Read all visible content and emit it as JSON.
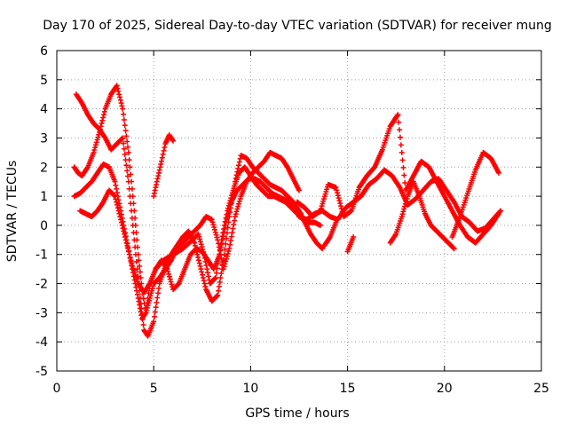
{
  "chart_data": {
    "type": "scatter",
    "title": "Day 170 of 2025, Sidereal Day-to-day VTEC variation (SDTVAR) for receiver mung",
    "xlabel": "GPS time / hours",
    "ylabel": "SDTVAR / TECUs",
    "xlim": [
      0,
      25
    ],
    "ylim": [
      -5,
      6
    ],
    "xticks": [
      "0",
      "5",
      "10",
      "15",
      "20",
      "25"
    ],
    "yticks": [
      "-5",
      "-4",
      "-3",
      "-2",
      "-1",
      "0",
      "1",
      "2",
      "3",
      "4",
      "5",
      "6"
    ],
    "grid": true,
    "marker": "plus",
    "color": "#ff0000",
    "series": [
      {
        "name": "s1",
        "x": [
          0.9,
          1.2,
          1.5,
          1.8,
          2.1,
          2.4,
          2.7,
          3.0,
          3.3,
          3.6,
          3.9,
          4.2,
          4.4,
          4.6,
          4.8,
          5.1,
          5.5,
          6.0,
          6.5,
          7.0,
          7.3,
          7.6,
          7.9,
          8.2,
          8.5,
          8.8,
          9.1,
          9.4,
          9.7,
          10.0,
          10.3,
          10.6,
          10.9,
          11.2,
          11.5,
          11.8,
          12.1,
          12.4,
          12.7,
          13.0,
          13.3,
          13.6
        ],
        "y": [
          1.0,
          1.1,
          1.3,
          1.5,
          1.8,
          2.1,
          2.0,
          1.5,
          0.5,
          -0.5,
          -1.5,
          -2.5,
          -3.2,
          -3.0,
          -2.0,
          -1.5,
          -1.2,
          -1.0,
          -0.8,
          -0.5,
          -0.3,
          -1.0,
          -2.0,
          -1.8,
          -0.5,
          0.5,
          1.2,
          1.8,
          2.0,
          1.7,
          1.4,
          1.2,
          1.0,
          1.0,
          0.9,
          0.8,
          0.6,
          0.4,
          0.2,
          0.1,
          0.1,
          0.0
        ]
      },
      {
        "name": "s2",
        "x": [
          0.9,
          1.1,
          1.3,
          1.6,
          1.9,
          2.2,
          2.5,
          2.8,
          3.1,
          3.4,
          3.7,
          4.0,
          4.2,
          4.4,
          4.6,
          4.8,
          5.0,
          5.3,
          5.6,
          5.9,
          6.2,
          6.5,
          6.8,
          7.1,
          7.4,
          7.7,
          8.0,
          8.3,
          8.6,
          8.9,
          9.2,
          9.5,
          9.8,
          10.1,
          10.4,
          10.7,
          11.0,
          11.3,
          11.6,
          11.9,
          12.2,
          12.5
        ],
        "y": [
          2.0,
          1.8,
          1.7,
          2.0,
          2.5,
          3.2,
          4.0,
          4.5,
          4.8,
          4.0,
          2.5,
          0.5,
          -1.0,
          -2.2,
          -3.0,
          -2.5,
          -2.0,
          -1.8,
          -1.5,
          -1.2,
          -0.8,
          -0.6,
          -0.4,
          -0.2,
          0.0,
          0.3,
          0.2,
          -0.5,
          -1.5,
          -0.8,
          0.3,
          1.0,
          1.5,
          1.8,
          2.0,
          2.2,
          2.5,
          2.4,
          2.3,
          2.0,
          1.6,
          1.2
        ]
      },
      {
        "name": "s3",
        "x": [
          1.0,
          1.3,
          1.6,
          1.9,
          2.2,
          2.5,
          2.8,
          3.1,
          3.4,
          3.7,
          4.0,
          4.3,
          4.5,
          4.7,
          5.0,
          5.3,
          5.6,
          5.9,
          6.2,
          6.5,
          6.8,
          7.1,
          7.4,
          7.7,
          8.0,
          8.3,
          8.6,
          8.9,
          9.2,
          9.5,
          9.8,
          10.1,
          10.4,
          10.7,
          11.0,
          11.3,
          11.6,
          11.9,
          12.2,
          12.5,
          12.8,
          13.1,
          13.4,
          13.7
        ],
        "y": [
          4.5,
          4.2,
          3.8,
          3.5,
          3.3,
          3.0,
          2.6,
          2.8,
          3.0,
          1.5,
          -0.5,
          -2.5,
          -3.6,
          -3.8,
          -3.3,
          -2.0,
          -1.4,
          -1.0,
          -0.7,
          -0.4,
          -0.2,
          -0.6,
          -1.4,
          -2.2,
          -2.6,
          -2.4,
          -1.2,
          0.3,
          1.5,
          2.4,
          2.3,
          2.0,
          1.8,
          1.6,
          1.4,
          1.3,
          1.2,
          1.0,
          0.8,
          0.5,
          0.1,
          -0.3,
          -0.6,
          -0.8
        ]
      },
      {
        "name": "s4",
        "x": [
          1.2,
          1.5,
          1.8,
          2.1,
          2.4,
          2.7,
          3.0,
          3.3,
          3.6,
          3.9,
          4.2,
          4.5,
          4.8,
          5.1,
          5.4,
          5.7,
          6.0,
          6.3,
          6.6,
          6.9,
          7.2,
          7.5,
          7.8,
          8.1,
          8.4,
          8.7,
          9.0,
          9.3,
          9.6,
          9.9,
          10.2,
          10.5,
          10.8,
          11.1,
          11.4,
          11.7,
          12.0,
          12.3,
          12.6
        ],
        "y": [
          0.5,
          0.4,
          0.3,
          0.5,
          0.8,
          1.2,
          1.0,
          0.2,
          -0.6,
          -1.4,
          -2.0,
          -2.3,
          -2.0,
          -1.5,
          -1.2,
          -1.5,
          -2.2,
          -2.0,
          -1.5,
          -1.0,
          -0.8,
          -0.9,
          -1.2,
          -1.5,
          -1.0,
          0.0,
          0.8,
          1.2,
          1.4,
          1.6,
          1.6,
          1.5,
          1.3,
          1.1,
          1.0,
          0.9,
          0.8,
          0.6,
          0.4
        ]
      },
      {
        "name": "s5",
        "x": [
          5.0,
          5.2,
          5.4,
          5.6,
          5.8,
          6.0
        ],
        "y": [
          1.0,
          1.6,
          2.2,
          2.8,
          3.1,
          2.9
        ]
      },
      {
        "name": "s6",
        "x": [
          12.4,
          12.8,
          13.2,
          13.6,
          14.0,
          14.4,
          14.8,
          15.2,
          15.6,
          16.0,
          16.4,
          16.8,
          17.2,
          17.6,
          18.0,
          18.4,
          18.8,
          19.2,
          19.6,
          20.0,
          20.4,
          20.8,
          21.2,
          21.6,
          22.0,
          22.4,
          22.8
        ],
        "y": [
          0.8,
          0.6,
          0.3,
          0.5,
          1.4,
          1.3,
          0.3,
          0.5,
          1.3,
          1.7,
          2.0,
          2.6,
          3.4,
          3.8,
          1.2,
          1.7,
          2.2,
          2.0,
          1.5,
          1.0,
          0.5,
          0.0,
          -0.4,
          -0.6,
          -0.3,
          0.0,
          0.4
        ]
      },
      {
        "name": "s7",
        "x": [
          12.5,
          12.9,
          13.3,
          13.7,
          14.1,
          14.5,
          14.9,
          15.3,
          15.7,
          16.1,
          16.5,
          16.9,
          17.3,
          17.7,
          18.1,
          18.5,
          18.9,
          19.3,
          19.7,
          20.1,
          20.5,
          20.9,
          21.3,
          21.7,
          22.1,
          22.5,
          22.9
        ],
        "y": [
          0.3,
          0.2,
          0.4,
          0.5,
          0.3,
          0.2,
          0.6,
          0.8,
          1.0,
          1.4,
          1.6,
          1.9,
          1.7,
          1.3,
          0.7,
          0.9,
          1.2,
          1.5,
          1.6,
          1.2,
          0.8,
          0.3,
          0.1,
          -0.2,
          -0.1,
          0.2,
          0.5
        ]
      },
      {
        "name": "s8",
        "x": [
          17.2,
          17.5,
          17.8,
          18.1,
          18.4,
          18.7,
          19.0,
          19.3,
          19.6,
          19.9,
          20.2,
          20.5
        ],
        "y": [
          -0.6,
          -0.3,
          0.3,
          1.0,
          1.5,
          1.0,
          0.4,
          0.0,
          -0.2,
          -0.4,
          -0.6,
          -0.8
        ]
      },
      {
        "name": "s9",
        "x": [
          20.4,
          20.8,
          21.2,
          21.6,
          22.0,
          22.4,
          22.8
        ],
        "y": [
          -0.4,
          0.3,
          1.1,
          1.9,
          2.5,
          2.3,
          1.8
        ]
      },
      {
        "name": "s10",
        "x": [
          13.8,
          14.1,
          14.4
        ],
        "y": [
          -0.7,
          -0.4,
          0.1
        ]
      },
      {
        "name": "s11",
        "x": [
          15.0,
          15.3
        ],
        "y": [
          -0.9,
          -0.4
        ]
      }
    ]
  }
}
